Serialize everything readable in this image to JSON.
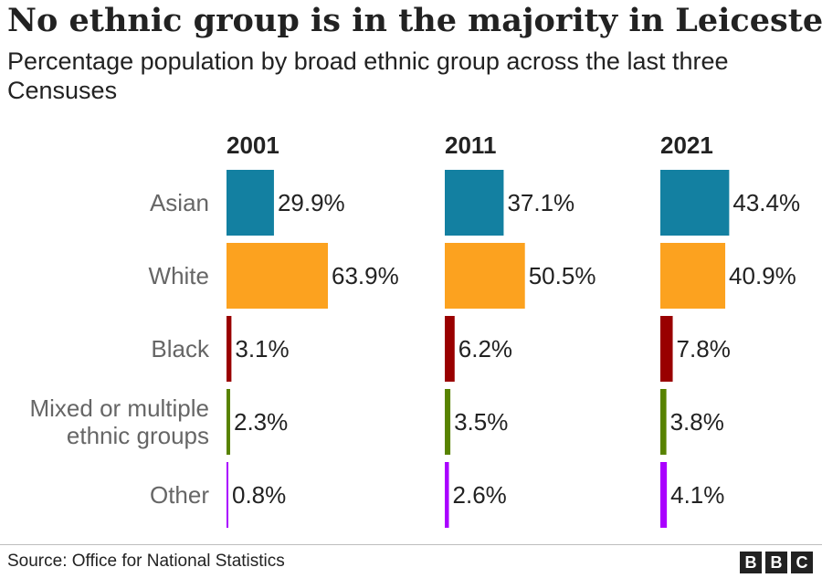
{
  "title": "No ethnic group is in the majority in Leicester",
  "subtitle": "Percentage population by broad ethnic group across the last three Censuses",
  "source": "Source: Office for National Statistics",
  "logo": [
    "B",
    "B",
    "C"
  ],
  "chart_data": {
    "type": "bar",
    "title": "No ethnic group is in the majority in Leicester",
    "subtitle": "Percentage population by broad ethnic group across the last three Censuses",
    "categories": [
      "Asian",
      "White",
      "Black",
      "Mixed or multiple ethnic groups",
      "Other"
    ],
    "category_label_lines": [
      [
        "Asian"
      ],
      [
        "White"
      ],
      [
        "Black"
      ],
      [
        "Mixed or multiple",
        "ethnic groups"
      ],
      [
        "Other"
      ]
    ],
    "colors": [
      "#1380a1",
      "#fca21f",
      "#990000",
      "#588300",
      "#aa00ff"
    ],
    "series": [
      {
        "name": "2001",
        "values": [
          29.9,
          63.9,
          3.1,
          2.3,
          0.8
        ],
        "labels": [
          "29.9%",
          "63.9%",
          "3.1%",
          "2.3%",
          "0.8%"
        ]
      },
      {
        "name": "2011",
        "values": [
          37.1,
          50.5,
          6.2,
          3.5,
          2.6
        ],
        "labels": [
          "37.1%",
          "50.5%",
          "6.2%",
          "3.5%",
          "2.6%"
        ]
      },
      {
        "name": "2021",
        "values": [
          43.4,
          40.9,
          7.8,
          3.8,
          4.1
        ],
        "labels": [
          "43.4%",
          "40.9%",
          "7.8%",
          "3.8%",
          "4.1%"
        ]
      }
    ],
    "layout": "small-multiples",
    "ylim": [
      0,
      100
    ],
    "grid": false,
    "legend": "none"
  }
}
